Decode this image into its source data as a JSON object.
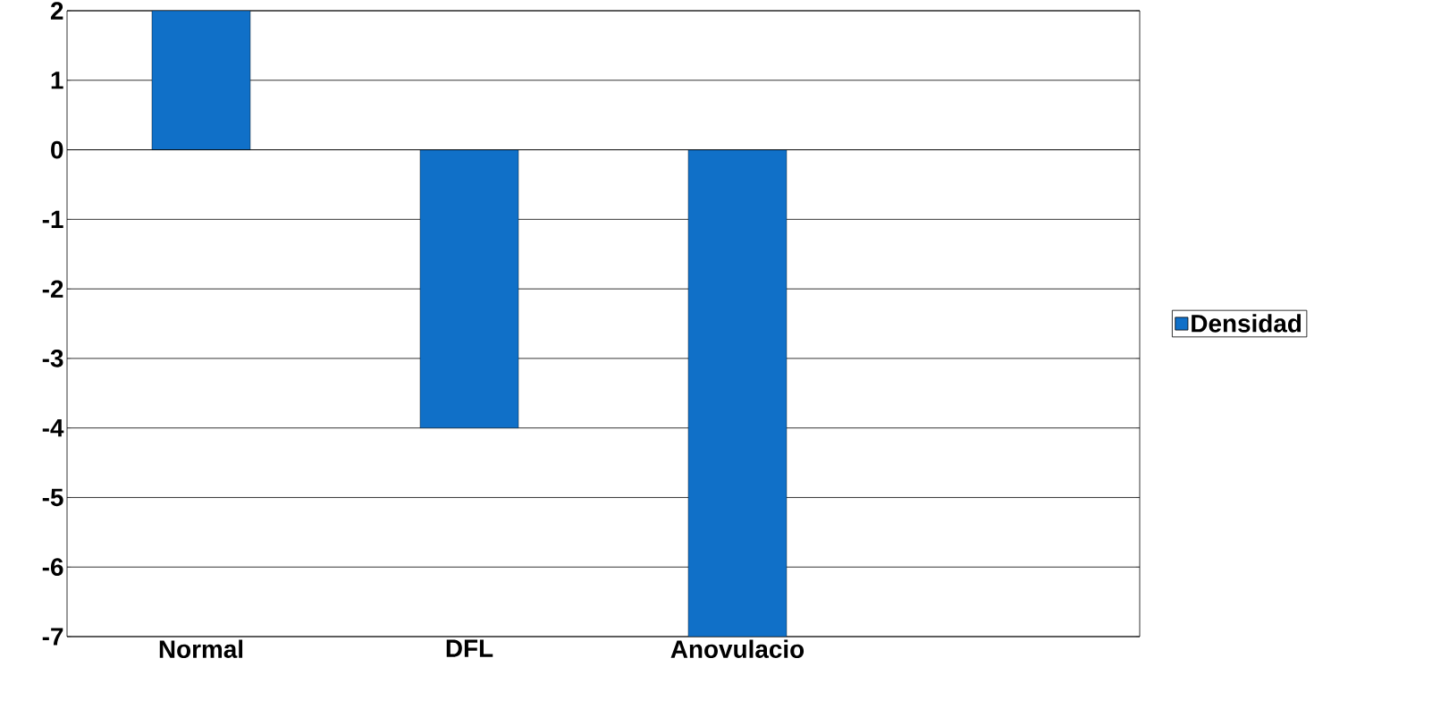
{
  "chart_data": {
    "type": "bar",
    "categories": [
      "Normal",
      "DFL",
      "Anovulacio",
      null
    ],
    "series": [
      {
        "name": "Densidad",
        "color": "#1070c8",
        "values": [
          2,
          -4,
          -7,
          null
        ]
      }
    ],
    "ylim": [
      -7,
      2
    ],
    "yticks": [
      -7,
      -6,
      -5,
      -4,
      -3,
      -2,
      -1,
      0,
      1,
      2
    ],
    "grid": "y",
    "legend": "right"
  }
}
